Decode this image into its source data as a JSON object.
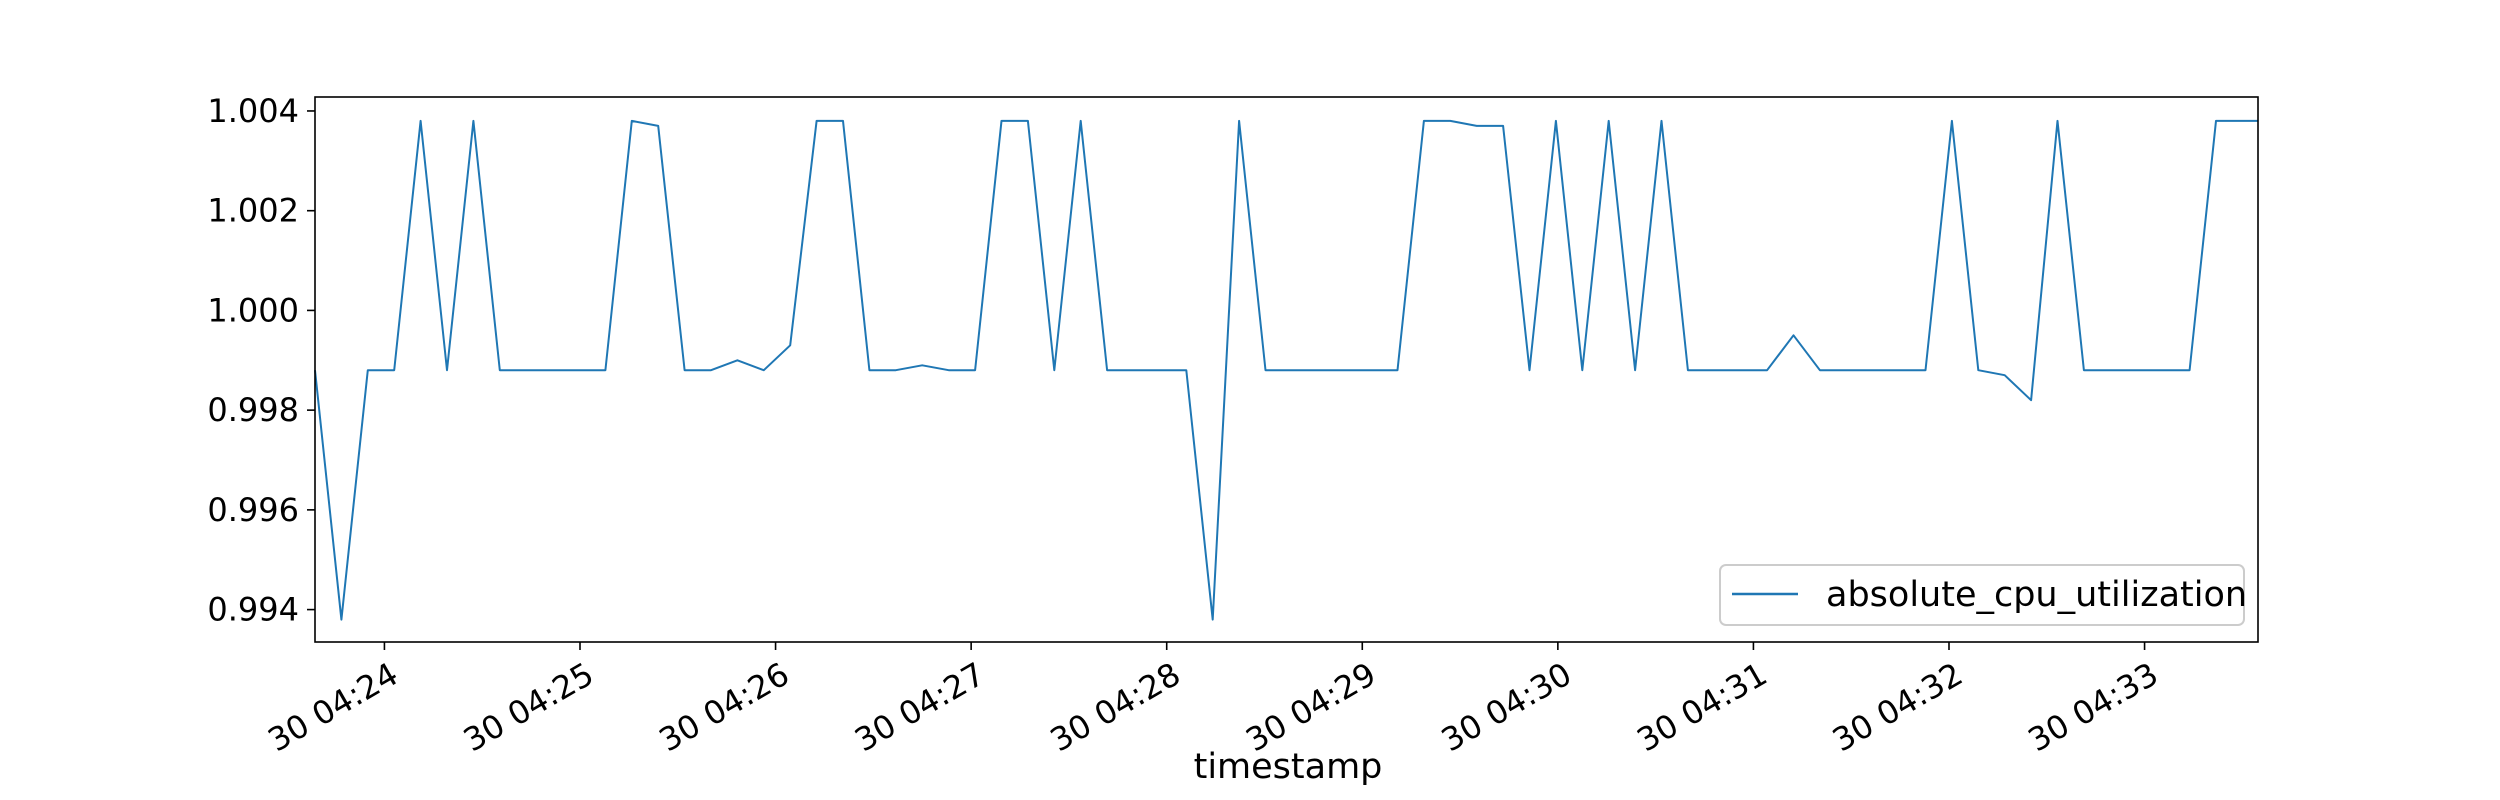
{
  "chart_data": {
    "type": "line",
    "title": "",
    "xlabel": "timestamp",
    "ylabel": "",
    "x_tick_labels": [
      "30 04:24",
      "30 04:25",
      "30 04:26",
      "30 04:27",
      "30 04:28",
      "30 04:29",
      "30 04:30",
      "30 04:31",
      "30 04:32",
      "30 04:33"
    ],
    "y_tick_labels": [
      "0.994",
      "0.996",
      "0.998",
      "1.000",
      "1.002",
      "1.004"
    ],
    "y_ticks": [
      0.994,
      0.996,
      0.998,
      1.0,
      1.002,
      1.004
    ],
    "ylim": [
      0.99335,
      1.00428
    ],
    "x_tick_minutes": [
      24,
      25,
      26,
      27,
      28,
      29,
      30,
      31,
      32,
      33
    ],
    "xlim_minutes": [
      23.645,
      33.58
    ],
    "legend_position": "lower right",
    "grid": false,
    "series": [
      {
        "name": "absolute_cpu_utilization",
        "color": "#1f77b4",
        "x_minutes": [
          23.645,
          23.78,
          23.915,
          24.05,
          24.185,
          24.32,
          24.455,
          24.59,
          24.725,
          24.86,
          24.995,
          25.13,
          25.265,
          25.4,
          25.535,
          25.67,
          25.805,
          25.94,
          26.075,
          26.21,
          26.345,
          26.48,
          26.615,
          26.75,
          26.885,
          27.02,
          27.155,
          27.29,
          27.425,
          27.56,
          27.695,
          27.83,
          27.965,
          28.1,
          28.235,
          28.37,
          28.505,
          28.64,
          28.775,
          28.91,
          29.045,
          29.18,
          29.315,
          29.45,
          29.585,
          29.72,
          29.855,
          29.99,
          30.125,
          30.26,
          30.395,
          30.53,
          30.665,
          30.8,
          30.935,
          31.07,
          31.205,
          31.34,
          31.475,
          31.61,
          31.745,
          31.88,
          32.015,
          32.15,
          32.285,
          32.42,
          32.555,
          32.69,
          32.825,
          32.96,
          33.095,
          33.23,
          33.365,
          33.5,
          33.58
        ],
        "values": [
          0.9988,
          0.9938,
          0.9988,
          0.9988,
          1.0038,
          0.9988,
          1.0038,
          0.9988,
          0.9988,
          0.9988,
          0.9988,
          0.9988,
          1.0038,
          1.0037,
          0.9988,
          0.9988,
          0.999,
          0.9988,
          0.9993,
          1.0038,
          1.0038,
          0.9988,
          0.9988,
          0.9989,
          0.9988,
          0.9988,
          1.0038,
          1.0038,
          0.9988,
          1.0038,
          0.9988,
          0.9988,
          0.9988,
          0.9988,
          0.9938,
          1.0038,
          0.9988,
          0.9988,
          0.9988,
          0.9988,
          0.9988,
          0.9988,
          1.0038,
          1.0038,
          1.0037,
          1.0037,
          0.9988,
          1.0038,
          0.9988,
          1.0038,
          0.9988,
          1.0038,
          0.9988,
          0.9988,
          0.9988,
          0.9988,
          0.9995,
          0.9988,
          0.9988,
          0.9988,
          0.9988,
          0.9988,
          1.0038,
          0.9988,
          0.9987,
          0.9982,
          1.0038,
          0.9988,
          0.9988,
          0.9988,
          0.9988,
          0.9988,
          1.0038,
          1.0038,
          1.0038
        ]
      }
    ]
  }
}
